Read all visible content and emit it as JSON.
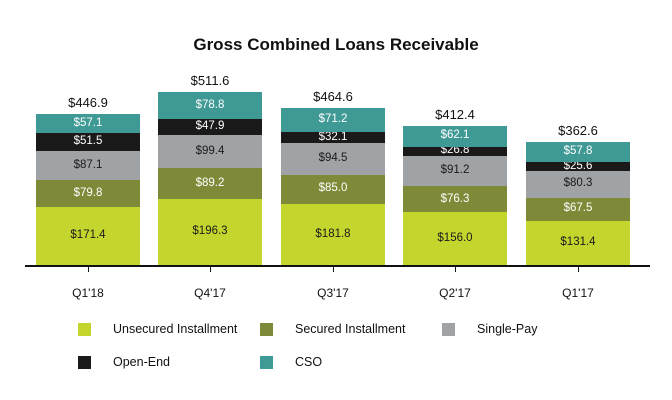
{
  "chart_data": {
    "type": "bar",
    "stacked": true,
    "title": "Gross Combined Loans Receivable",
    "xlabel": "",
    "ylabel": "",
    "grid": false,
    "legend_position": "bottom",
    "categories": [
      "Q1'18",
      "Q4'17",
      "Q3'17",
      "Q2'17",
      "Q1'17"
    ],
    "totals": [
      446.9,
      511.6,
      464.6,
      412.4,
      362.6
    ],
    "total_labels": [
      "$446.9",
      "$511.6",
      "$464.6",
      "$412.4",
      "$362.6"
    ],
    "series": [
      {
        "name": "Unsecured Installment",
        "color": "#c4d62e",
        "text_color": "#1a1a1a",
        "values": [
          171.4,
          196.3,
          181.8,
          156.0,
          131.4
        ],
        "labels": [
          "$171.4",
          "$196.3",
          "$181.8",
          "$156.0",
          "$131.4"
        ]
      },
      {
        "name": "Secured Installment",
        "color": "#7f8a39",
        "text_color": "#ffffff",
        "values": [
          79.8,
          89.2,
          85.0,
          76.3,
          67.5
        ],
        "labels": [
          "$79.8",
          "$89.2",
          "$85.0",
          "$76.3",
          "$67.5"
        ]
      },
      {
        "name": "Single-Pay",
        "color": "#a0a3a5",
        "text_color": "#1a1a1a",
        "values": [
          87.1,
          99.4,
          94.5,
          91.2,
          80.3
        ],
        "labels": [
          "$87.1",
          "$99.4",
          "$94.5",
          "$91.2",
          "$80.3"
        ]
      },
      {
        "name": "Open-End",
        "color": "#1a1a1a",
        "text_color": "#ffffff",
        "values": [
          51.5,
          47.9,
          32.1,
          26.8,
          25.6
        ],
        "labels": [
          "$51.5",
          "$47.9",
          "$32.1",
          "$26.8",
          "$25.6"
        ]
      },
      {
        "name": "CSO",
        "color": "#3f9a96",
        "text_color": "#ffffff",
        "values": [
          57.1,
          78.8,
          71.2,
          62.1,
          57.8
        ],
        "labels": [
          "$57.1",
          "$78.8",
          "$71.2",
          "$62.1",
          "$57.8"
        ]
      }
    ],
    "ylim": [
      0,
      520
    ]
  },
  "legend": [
    {
      "label": "Unsecured Installment",
      "color": "#c4d62e"
    },
    {
      "label": "Secured Installment",
      "color": "#7f8a39"
    },
    {
      "label": "Single-Pay",
      "color": "#a0a3a5"
    },
    {
      "label": "Open-End",
      "color": "#1a1a1a"
    },
    {
      "label": "CSO",
      "color": "#3f9a96"
    }
  ]
}
